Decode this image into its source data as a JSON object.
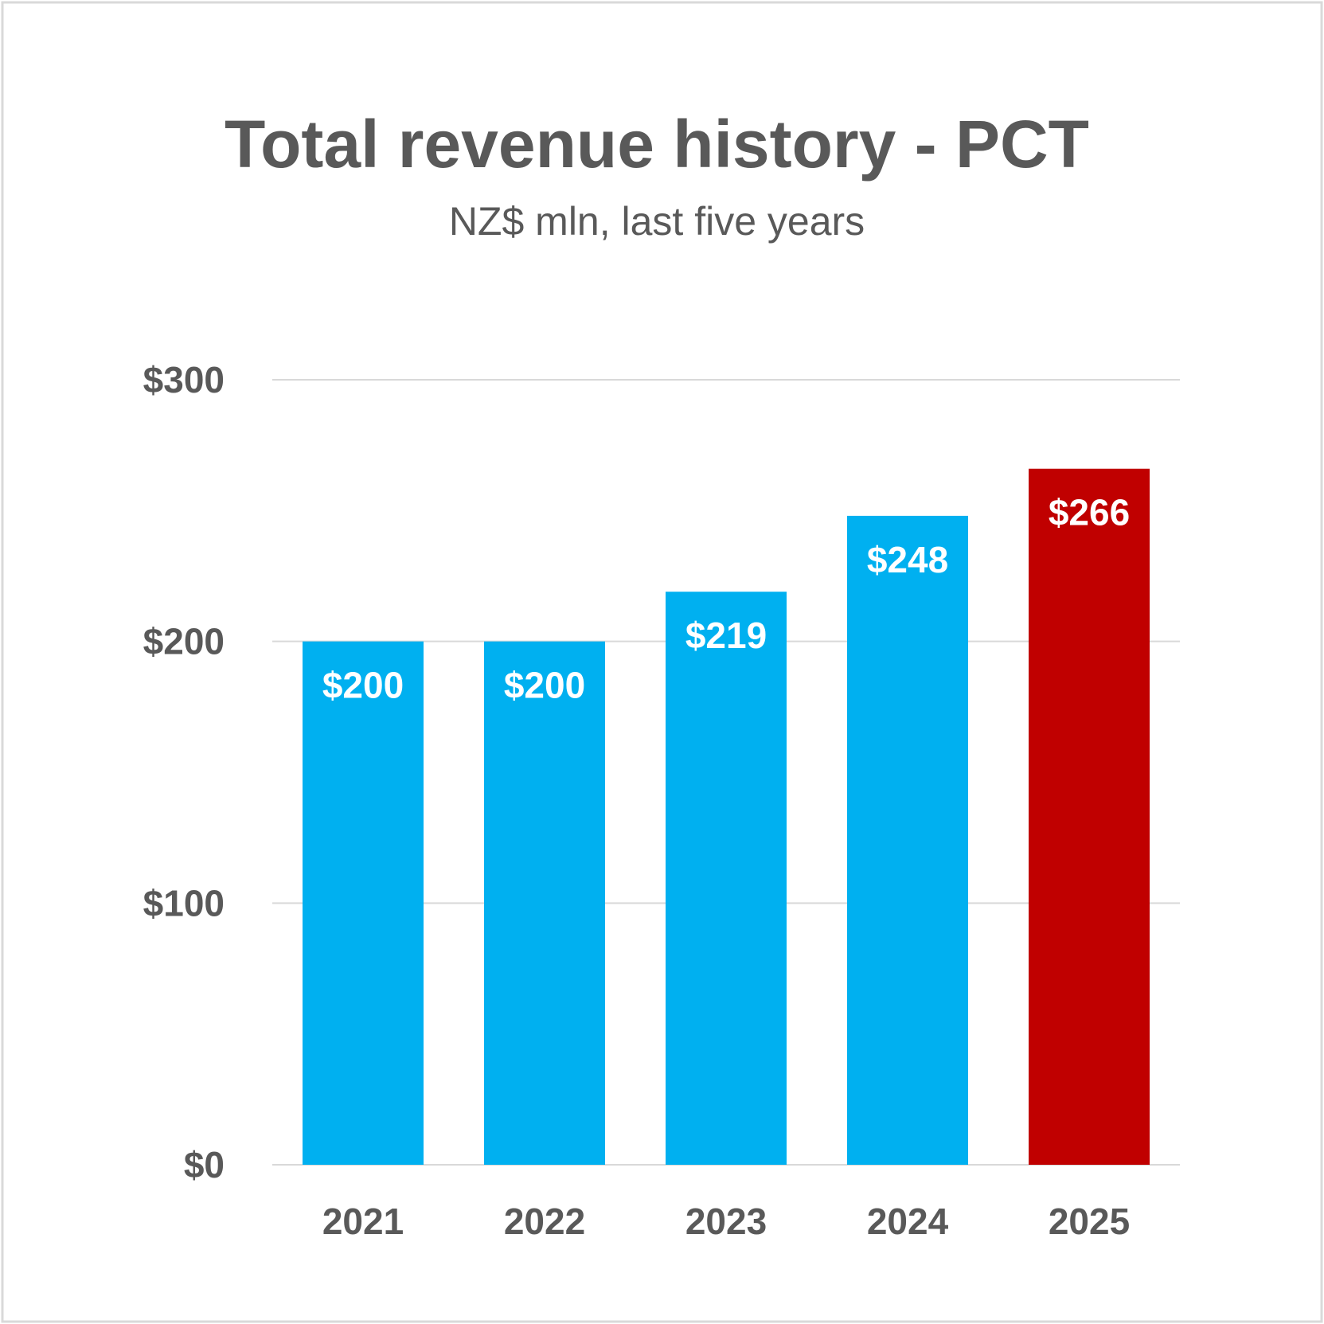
{
  "chart_data": {
    "type": "bar",
    "title": "Total revenue history - PCT",
    "subtitle": "NZ$ mln, last five years",
    "categories": [
      "2021",
      "2022",
      "2023",
      "2024",
      "2025"
    ],
    "values": [
      200,
      200,
      219,
      248,
      266
    ],
    "data_labels": [
      "$200",
      "$200",
      "$219",
      "$248",
      "$266"
    ],
    "bar_colors": [
      "#00B0F0",
      "#00B0F0",
      "#00B0F0",
      "#00B0F0",
      "#C00000"
    ],
    "ylim": [
      0,
      300
    ],
    "yticks": [
      0,
      100,
      200,
      300
    ],
    "ytick_labels": [
      "$0",
      "$100",
      "$200",
      "$300"
    ],
    "grid": true,
    "legend": "none",
    "xlabel": "",
    "ylabel": ""
  },
  "colors": {
    "text": "#595959",
    "gridline": "#D9D9D9",
    "border": "#D9D9D9",
    "background": "#FFFFFF"
  }
}
